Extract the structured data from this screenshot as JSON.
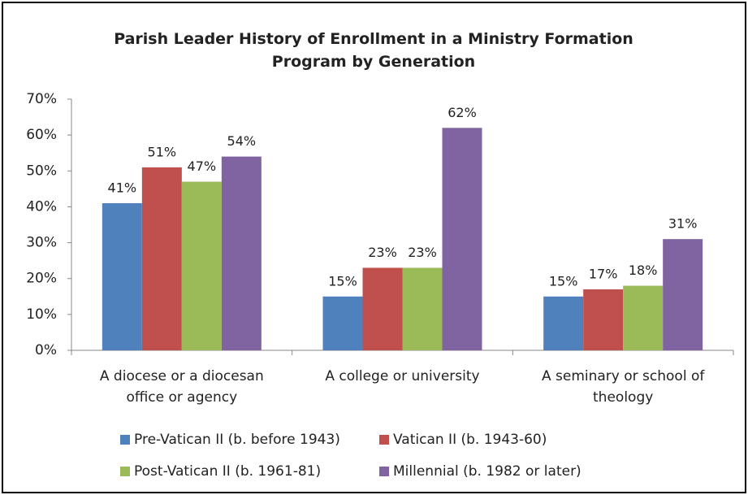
{
  "chart_data": {
    "type": "bar",
    "title": "Parish Leader History of Enrollment in a Ministry Formation Program by Generation",
    "categories": [
      "A diocese or a diocesan office or agency",
      "A college or university",
      "A seminary or school of theology"
    ],
    "series": [
      {
        "name": "Pre-Vatican II (b. before 1943)",
        "color": "#4f81bd",
        "values": [
          41,
          15,
          15
        ],
        "value_labels": [
          "41%",
          "15%",
          "15%"
        ]
      },
      {
        "name": "Vatican II (b. 1943-60)",
        "color": "#c0504d",
        "values": [
          51,
          23,
          17
        ],
        "value_labels": [
          "51%",
          "23%",
          "17%"
        ]
      },
      {
        "name": "Post-Vatican II (b. 1961-81)",
        "color": "#9bbb59",
        "values": [
          47,
          23,
          18
        ],
        "value_labels": [
          "47%",
          "23%",
          "18%"
        ]
      },
      {
        "name": "Millennial (b. 1982 or later)",
        "color": "#8064a2",
        "values": [
          54,
          62,
          31
        ],
        "value_labels": [
          "54%",
          "62%",
          "31%"
        ]
      }
    ],
    "ylim": [
      0,
      70
    ],
    "yticks": [
      {
        "value": 0,
        "label": "0%"
      },
      {
        "value": 10,
        "label": "10%"
      },
      {
        "value": 20,
        "label": "20%"
      },
      {
        "value": 30,
        "label": "30%"
      },
      {
        "value": 40,
        "label": "40%"
      },
      {
        "value": 50,
        "label": "50%"
      },
      {
        "value": 60,
        "label": "60%"
      },
      {
        "value": 70,
        "label": "70%"
      }
    ],
    "grid": false
  }
}
